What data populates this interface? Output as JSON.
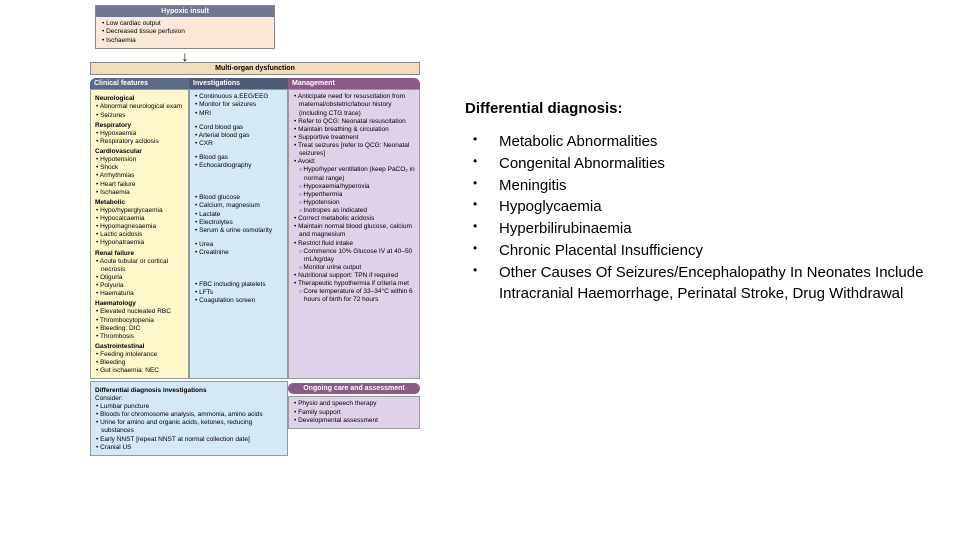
{
  "hypoxic": {
    "header": "Hypoxic insult",
    "items": [
      "Low cardiac output",
      "Decreased tissue perfusion",
      "Ischaemia"
    ]
  },
  "multiOrgan": "Multi-organ dysfunction",
  "colHeaders": {
    "c1": "Clinical features",
    "c2": "Investigations",
    "c3": "Management"
  },
  "management": [
    {
      "t": "b",
      "v": "Anticipate need for resuscitation from maternal/obstetric/labour history (including CTG trace)"
    },
    {
      "t": "b",
      "v": "Refer to QCG: Neonatal resuscitation"
    },
    {
      "t": "b",
      "v": "Maintain breathing & circulation"
    },
    {
      "t": "b",
      "v": "Supportive treatment"
    },
    {
      "t": "b",
      "v": "Treat seizures [refer to QCG: Neonatal seizures]"
    },
    {
      "t": "b",
      "v": "Avoid:"
    },
    {
      "t": "bo",
      "v": "Hypo/hyper ventilation (keep PaCO₂ in normal range)"
    },
    {
      "t": "bo",
      "v": "Hypoxaemia/hyperoxia"
    },
    {
      "t": "bo",
      "v": "Hyperthermia"
    },
    {
      "t": "bo",
      "v": "Hypotension"
    },
    {
      "t": "bo",
      "v": "Inotropes as indicated"
    },
    {
      "t": "b",
      "v": "Correct metabolic acidosis"
    },
    {
      "t": "b",
      "v": "Maintain normal blood glucose, calcium and magnesium"
    },
    {
      "t": "b",
      "v": "Restrict fluid intake"
    },
    {
      "t": "bo",
      "v": "Commence 10% Glucose IV at 40–50 mL/kg/day"
    },
    {
      "t": "bo",
      "v": "Monitor urine output"
    },
    {
      "t": "b",
      "v": "Nutritional support: TPN if required"
    },
    {
      "t": "b",
      "v": "Therapeutic hypothermia if criteria met"
    },
    {
      "t": "bo",
      "v": "Core temperature of 33–34°C within 6 hours of birth for 72 hours"
    }
  ],
  "clinical": [
    {
      "t": "sec",
      "v": "Neurological"
    },
    {
      "t": "b",
      "v": "Abnormal neurological exam"
    },
    {
      "t": "b",
      "v": "Seizures"
    },
    {
      "t": "sec",
      "v": "Respiratory"
    },
    {
      "t": "b",
      "v": "Hypoxaemia"
    },
    {
      "t": "b",
      "v": "Respiratory acidosis"
    },
    {
      "t": "sec",
      "v": "Cardiovascular"
    },
    {
      "t": "b",
      "v": "Hypotension"
    },
    {
      "t": "b",
      "v": "Shock"
    },
    {
      "t": "b",
      "v": "Arrhythmias"
    },
    {
      "t": "b",
      "v": "Heart failure"
    },
    {
      "t": "b",
      "v": "Ischaemia"
    },
    {
      "t": "sec",
      "v": "Metabolic"
    },
    {
      "t": "b",
      "v": "Hypo/hyperglycaemia"
    },
    {
      "t": "b",
      "v": "Hypocalcaemia"
    },
    {
      "t": "b",
      "v": "Hypomagnesaemia"
    },
    {
      "t": "b",
      "v": "Lactic acidosis"
    },
    {
      "t": "b",
      "v": "Hyponatraemia"
    },
    {
      "t": "sec",
      "v": "Renal failure"
    },
    {
      "t": "b",
      "v": "Acute tubular or cortical necrosis"
    },
    {
      "t": "b",
      "v": "Oliguria"
    },
    {
      "t": "b",
      "v": "Polyuria"
    },
    {
      "t": "b",
      "v": "Haematuria"
    },
    {
      "t": "sec",
      "v": "Haematology"
    },
    {
      "t": "b",
      "v": "Elevated nucleated RBC"
    },
    {
      "t": "b",
      "v": "Thrombocytopenia"
    },
    {
      "t": "b",
      "v": "Bleeding: DIC"
    },
    {
      "t": "b",
      "v": "Thrombosis"
    },
    {
      "t": "sec",
      "v": "Gastrointestinal"
    },
    {
      "t": "b",
      "v": "Feeding intolerance"
    },
    {
      "t": "b",
      "v": "Bleeding"
    },
    {
      "t": "b",
      "v": "Gut ischaemia: NEC"
    }
  ],
  "invest": [
    {
      "t": "b",
      "v": "Continuous a.EEG/EEG"
    },
    {
      "t": "b",
      "v": "Monitor for seizures"
    },
    {
      "t": "b",
      "v": "MRI"
    },
    {
      "t": "sp",
      "v": ""
    },
    {
      "t": "b",
      "v": "Cord blood gas"
    },
    {
      "t": "b",
      "v": "Arterial blood gas"
    },
    {
      "t": "b",
      "v": "CXR"
    },
    {
      "t": "sp",
      "v": ""
    },
    {
      "t": "b",
      "v": "Blood gas"
    },
    {
      "t": "b",
      "v": "Echocardiography"
    },
    {
      "t": "sp3",
      "v": ""
    },
    {
      "t": "b",
      "v": "Blood glucose"
    },
    {
      "t": "b",
      "v": "Calcium, magnesium"
    },
    {
      "t": "b",
      "v": "Lactate"
    },
    {
      "t": "b",
      "v": "Electrolytes"
    },
    {
      "t": "b",
      "v": "Serum & urine osmolarity"
    },
    {
      "t": "sp",
      "v": ""
    },
    {
      "t": "b",
      "v": "Urea"
    },
    {
      "t": "b",
      "v": "Creatinine"
    },
    {
      "t": "sp3",
      "v": ""
    },
    {
      "t": "b",
      "v": "FBC including platelets"
    },
    {
      "t": "b",
      "v": "LFTs"
    },
    {
      "t": "b",
      "v": "Coagulation screen"
    }
  ],
  "ongoing": {
    "header": "Ongoing care and assessment",
    "items": [
      "Physio and speech therapy",
      "Family support",
      "Developmental assessment"
    ]
  },
  "diffInv": {
    "header": "Differential diagnosis investigations",
    "consider": "Consider:",
    "items": [
      "Lumbar puncture",
      "Bloods for chromosome analysis, ammonia, amino acids",
      "Urine for amino and organic acids, ketones, reducing substances",
      "Early NNST [repeat NNST at normal collection date]",
      "Cranial US"
    ]
  },
  "dd": {
    "title": "Differential diagnosis:",
    "items": [
      "Metabolic Abnormalities",
      "Congenital Abnormalities",
      "Meningitis",
      "Hypoglycaemia",
      "Hyperbilirubinaemia",
      "Chronic Placental Insufficiency",
      "Other Causes Of Seizures/Encephalopathy In Neonates Include Intracranial Haemorrhage, Perinatal Stroke, Drug Withdrawal"
    ]
  }
}
